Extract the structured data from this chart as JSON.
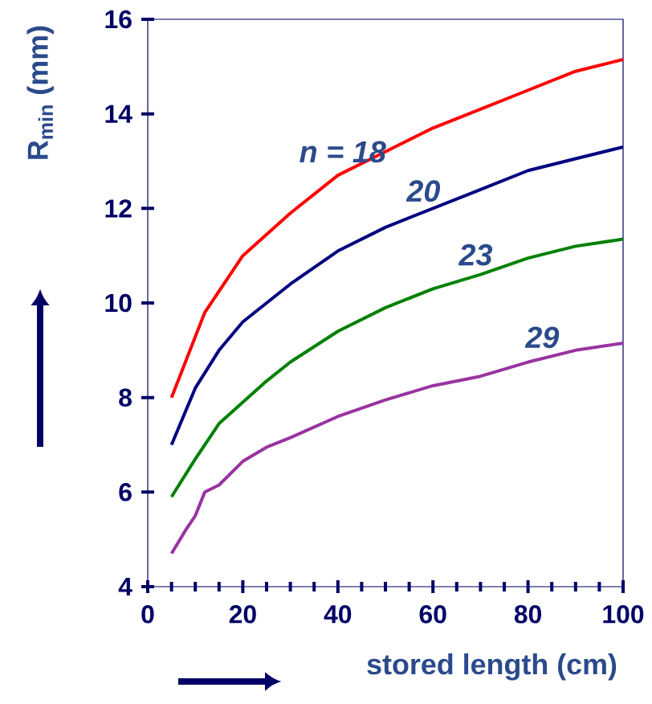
{
  "chart_data": {
    "type": "line",
    "xlabel": "stored length (cm)",
    "ylabel": "R$_{min}$ (mm)",
    "xlim": [
      0,
      100
    ],
    "ylim": [
      4,
      16
    ],
    "xticks": [
      0,
      20,
      40,
      60,
      80,
      100
    ],
    "yticks": [
      4,
      6,
      8,
      10,
      12,
      14,
      16
    ],
    "grid": false,
    "series": [
      {
        "name": "n = 18",
        "color": "#ff0000",
        "x": [
          5,
          12,
          20,
          30,
          40,
          50,
          60,
          70,
          80,
          90,
          100
        ],
        "values": [
          8.0,
          9.8,
          11.0,
          11.9,
          12.7,
          13.2,
          13.7,
          14.1,
          14.5,
          14.9,
          15.15
        ]
      },
      {
        "name": "20",
        "color": "#000080",
        "x": [
          5,
          10,
          15,
          20,
          30,
          40,
          50,
          60,
          70,
          80,
          90,
          100
        ],
        "values": [
          7.0,
          8.2,
          9.0,
          9.6,
          10.4,
          11.1,
          11.6,
          12.0,
          12.4,
          12.8,
          13.05,
          13.3
        ]
      },
      {
        "name": "23",
        "color": "#008000",
        "x": [
          5,
          10,
          15,
          20,
          25,
          30,
          40,
          50,
          60,
          70,
          80,
          90,
          100
        ],
        "values": [
          5.9,
          6.7,
          7.45,
          7.9,
          8.35,
          8.75,
          9.4,
          9.9,
          10.3,
          10.6,
          10.95,
          11.2,
          11.35
        ]
      },
      {
        "name": "29",
        "color": "#9933a0",
        "x": [
          5,
          8,
          10,
          12,
          15,
          20,
          25,
          30,
          40,
          50,
          60,
          70,
          80,
          90,
          100
        ],
        "values": [
          4.7,
          5.2,
          5.5,
          6.0,
          6.15,
          6.65,
          6.95,
          7.15,
          7.6,
          7.95,
          8.25,
          8.45,
          8.75,
          9.0,
          9.15
        ]
      }
    ]
  }
}
